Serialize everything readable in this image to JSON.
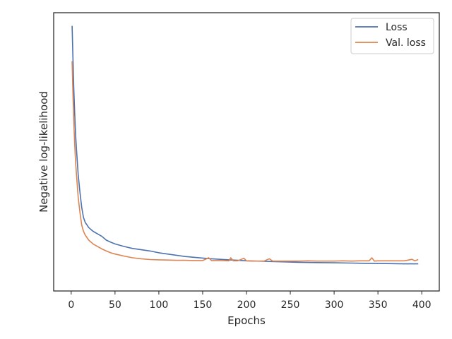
{
  "chart_data": {
    "type": "line",
    "xlabel": "Epochs",
    "ylabel": "Negative log-likelihood",
    "xlim": [
      -20,
      420
    ],
    "ylim": [
      0.0,
      1.0
    ],
    "x_ticks": [
      0,
      50,
      100,
      150,
      200,
      250,
      300,
      350,
      400
    ],
    "y_ticks_shown": false,
    "grid": false,
    "legend_position": "top-right",
    "series": [
      {
        "name": "Loss",
        "color": "#4c72b0",
        "x": [
          1,
          2,
          3,
          4,
          5,
          6,
          8,
          10,
          12,
          14,
          16,
          18,
          20,
          25,
          30,
          35,
          40,
          45,
          50,
          60,
          70,
          80,
          90,
          100,
          110,
          120,
          130,
          140,
          150,
          160,
          170,
          180,
          190,
          200,
          220,
          240,
          260,
          280,
          300,
          320,
          340,
          360,
          380,
          396
        ],
        "y": [
          0.99,
          0.86,
          0.74,
          0.64,
          0.56,
          0.5,
          0.4,
          0.33,
          0.27,
          0.23,
          0.21,
          0.2,
          0.19,
          0.175,
          0.165,
          0.155,
          0.14,
          0.132,
          0.125,
          0.115,
          0.107,
          0.102,
          0.097,
          0.09,
          0.085,
          0.08,
          0.075,
          0.072,
          0.069,
          0.066,
          0.064,
          0.062,
          0.06,
          0.058,
          0.056,
          0.054,
          0.052,
          0.051,
          0.05,
          0.049,
          0.048,
          0.047,
          0.046,
          0.046
        ]
      },
      {
        "name": "Val. loss",
        "color": "#dd8452",
        "x": [
          1,
          2,
          3,
          4,
          5,
          6,
          8,
          10,
          12,
          14,
          16,
          18,
          20,
          25,
          30,
          35,
          40,
          45,
          50,
          60,
          70,
          80,
          90,
          100,
          110,
          120,
          130,
          140,
          150,
          157,
          160,
          170,
          180,
          182,
          185,
          190,
          197,
          200,
          210,
          220,
          226,
          230,
          240,
          250,
          260,
          270,
          280,
          290,
          300,
          310,
          320,
          330,
          340,
          343,
          346,
          350,
          360,
          370,
          380,
          389,
          392,
          396
        ],
        "y": [
          0.85,
          0.72,
          0.61,
          0.52,
          0.45,
          0.4,
          0.31,
          0.25,
          0.2,
          0.175,
          0.16,
          0.15,
          0.14,
          0.125,
          0.115,
          0.105,
          0.097,
          0.09,
          0.085,
          0.077,
          0.07,
          0.066,
          0.063,
          0.062,
          0.061,
          0.06,
          0.06,
          0.059,
          0.059,
          0.07,
          0.059,
          0.059,
          0.058,
          0.07,
          0.058,
          0.058,
          0.068,
          0.058,
          0.057,
          0.057,
          0.066,
          0.057,
          0.057,
          0.057,
          0.057,
          0.058,
          0.057,
          0.057,
          0.057,
          0.058,
          0.057,
          0.058,
          0.058,
          0.07,
          0.057,
          0.058,
          0.058,
          0.058,
          0.058,
          0.064,
          0.058,
          0.063
        ]
      }
    ]
  }
}
